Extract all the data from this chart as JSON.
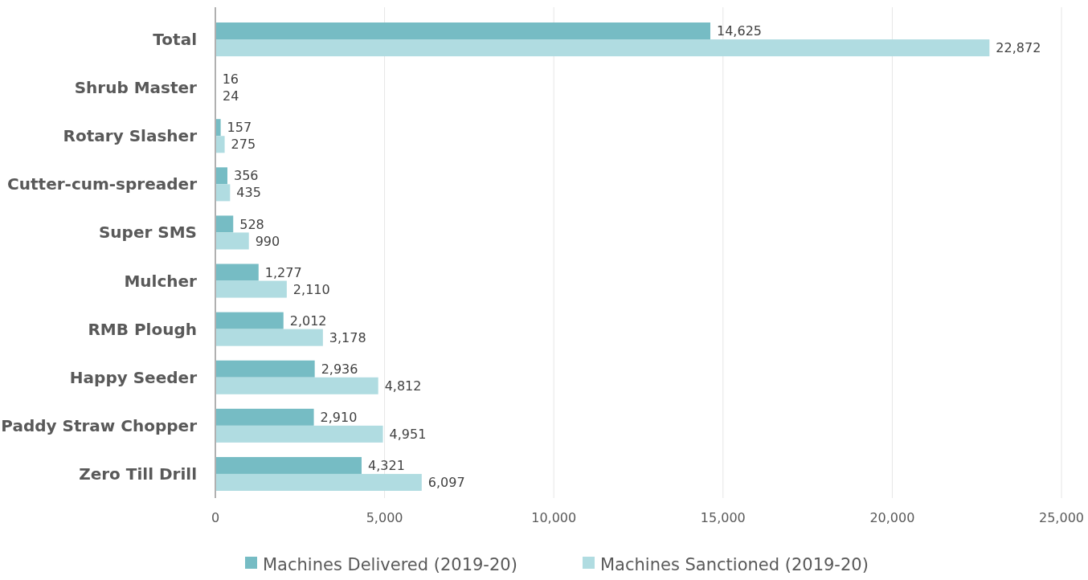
{
  "chart_data": {
    "type": "bar",
    "orientation": "horizontal",
    "categories": [
      "Total",
      "Shrub Master",
      "Rotary Slasher",
      "Cutter-cum-spreader",
      "Super SMS",
      "Mulcher",
      "RMB Plough",
      "Happy Seeder",
      "Paddy Straw Chopper",
      "Zero Till Drill"
    ],
    "series": [
      {
        "name": "Machines Delivered (2019-20)",
        "color": "#76bcc4",
        "values": [
          14625,
          16,
          157,
          356,
          528,
          1277,
          2012,
          2936,
          2910,
          4321
        ],
        "value_labels": [
          "14,625",
          "16",
          "157",
          "356",
          "528",
          "1,277",
          "2,012",
          "2,936",
          "2,910",
          "4,321"
        ]
      },
      {
        "name": "Machines Sanctioned (2019-20)",
        "color": "#b0dce1",
        "values": [
          22872,
          24,
          275,
          435,
          990,
          2110,
          3178,
          4812,
          4951,
          6097
        ],
        "value_labels": [
          "22,872",
          "24",
          "275",
          "435",
          "990",
          "2,110",
          "3,178",
          "4,812",
          "4,951",
          "6,097"
        ]
      }
    ],
    "xlim": [
      0,
      25000
    ],
    "xticks": [
      0,
      {
        "value": 5000,
        "label": "5,000"
      },
      {
        "value": 10000,
        "label": "10,000"
      },
      {
        "value": 15000,
        "label": "15,000"
      },
      {
        "value": 20000,
        "label": "20,000"
      },
      {
        "value": 25000,
        "label": "25,000"
      }
    ],
    "grid": "x",
    "legend": "bottom"
  }
}
